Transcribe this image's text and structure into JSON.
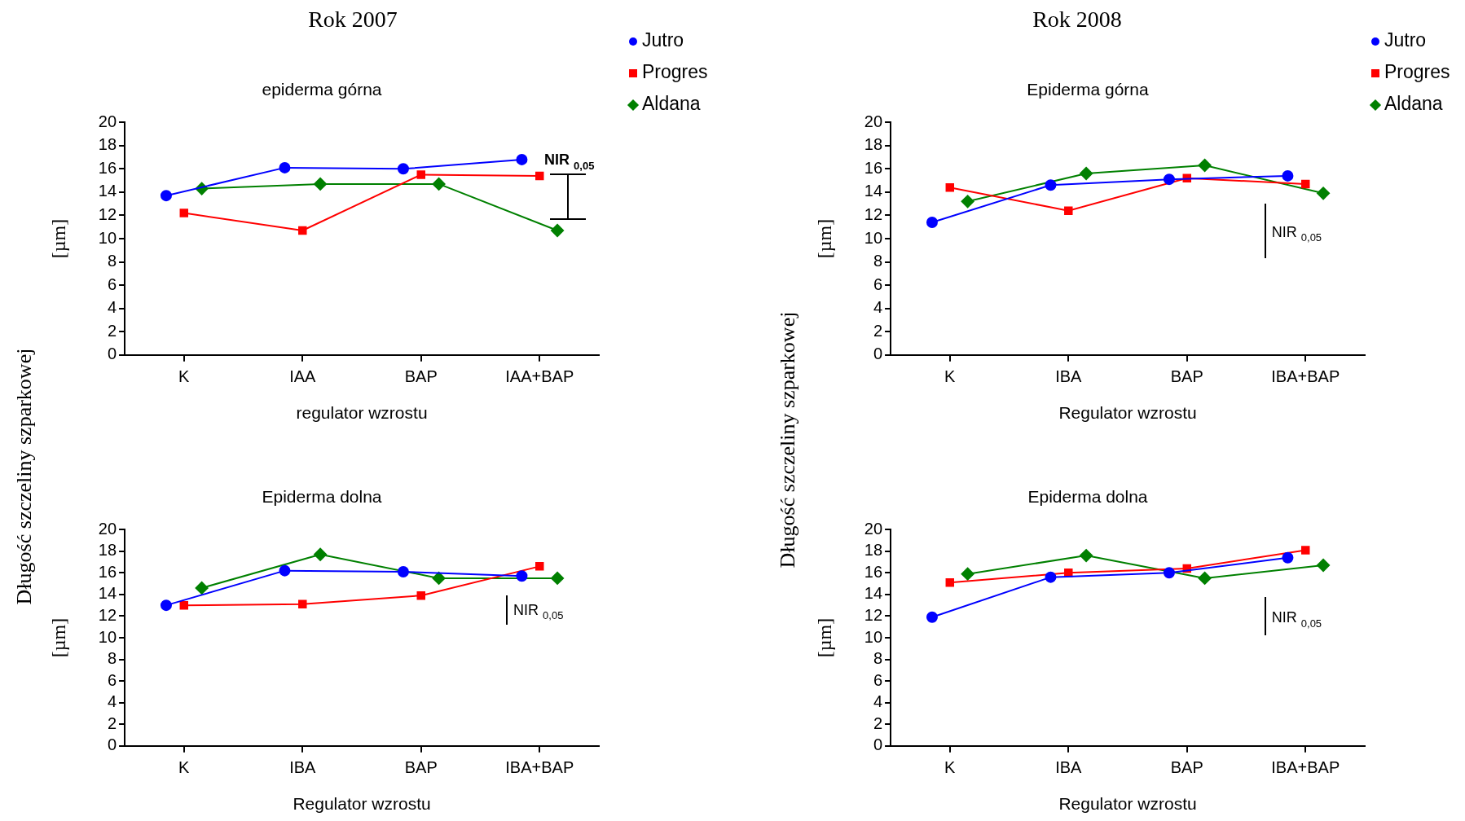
{
  "chart_data": [
    {
      "type": "line",
      "title": "epiderma górna",
      "xlabel": "regulator wzrostu",
      "ylabel": "[µm]",
      "categories": [
        "K",
        "IAA",
        "BAP",
        "IAA+BAP"
      ],
      "ylim": [
        0,
        20
      ],
      "yticks": [
        0,
        2,
        4,
        6,
        8,
        10,
        12,
        14,
        16,
        18,
        20
      ],
      "grid": false,
      "legend": "top right",
      "series": [
        {
          "name": "Jutro",
          "color": "#0000ff",
          "marker": "circle",
          "values": [
            13.7,
            16.1,
            16.0,
            16.8
          ]
        },
        {
          "name": "Progres",
          "color": "#ff0000",
          "marker": "square",
          "values": [
            12.2,
            10.7,
            15.5,
            15.4
          ]
        },
        {
          "name": "Aldana",
          "color": "#008000",
          "marker": "diamond",
          "values": [
            14.3,
            14.7,
            14.7,
            10.7
          ]
        }
      ],
      "annotations": [
        "NIR $_{0,05}$",
        "Rok 2007",
        "Długość szczeliny szparkowej"
      ]
    },
    {
      "type": "line",
      "title": "Epiderma górna",
      "xlabel": "Regulator wzrostu",
      "ylabel": "[µm]",
      "categories": [
        "K",
        "IBA",
        "BAP",
        "IBA+BAP"
      ],
      "ylim": [
        0,
        20
      ],
      "yticks": [
        0,
        2,
        4,
        6,
        8,
        10,
        12,
        14,
        16,
        18,
        20
      ],
      "grid": false,
      "legend": "top right",
      "series": [
        {
          "name": "Jutro",
          "color": "#0000ff",
          "marker": "circle",
          "values": [
            11.4,
            14.6,
            15.1,
            15.4
          ]
        },
        {
          "name": "Progres",
          "color": "#ff0000",
          "marker": "square",
          "values": [
            14.4,
            12.4,
            15.2,
            14.7
          ]
        },
        {
          "name": "Aldana",
          "color": "#008000",
          "marker": "diamond",
          "values": [
            13.2,
            15.6,
            16.3,
            13.9
          ]
        }
      ],
      "annotations": [
        "NIR $_{0,05}$",
        "Rok 2008",
        "Długość szczeliny szparkowej"
      ]
    },
    {
      "type": "line",
      "title": "Epiderma dolna",
      "xlabel": "Regulator wzrostu",
      "ylabel": "[µm]",
      "categories": [
        "K",
        "IBA",
        "BAP",
        "IBA+BAP"
      ],
      "ylim": [
        0,
        20
      ],
      "yticks": [
        0,
        2,
        4,
        6,
        8,
        10,
        12,
        14,
        16,
        18,
        20
      ],
      "grid": false,
      "series": [
        {
          "color": "#0000ff",
          "marker": "circle",
          "values": [
            13.0,
            16.2,
            16.1,
            15.7
          ]
        },
        {
          "color": "#ff0000",
          "marker": "square",
          "values": [
            13.0,
            13.1,
            13.9,
            16.6
          ]
        },
        {
          "color": "#008000",
          "marker": "diamond",
          "values": [
            14.6,
            17.7,
            15.5,
            15.5
          ]
        }
      ],
      "annotations": [
        "NIR $_{0,05}$"
      ]
    },
    {
      "type": "line",
      "title": "Epiderma dolna",
      "xlabel": "Regulator wzrostu",
      "ylabel": "[µm]",
      "categories": [
        "K",
        "IBA",
        "BAP",
        "IBA+BAP"
      ],
      "ylim": [
        0,
        20
      ],
      "yticks": [
        0,
        2,
        4,
        6,
        8,
        10,
        12,
        14,
        16,
        18,
        20
      ],
      "grid": false,
      "series": [
        {
          "color": "#0000ff",
          "marker": "circle",
          "values": [
            11.9,
            15.6,
            16.0,
            17.4
          ]
        },
        {
          "color": "#ff0000",
          "marker": "square",
          "values": [
            15.1,
            16.0,
            16.4,
            18.1
          ]
        },
        {
          "color": "#008000",
          "marker": "diamond",
          "values": [
            15.9,
            17.6,
            15.5,
            16.7
          ]
        }
      ],
      "annotations": [
        "NIR $_{0,05}$"
      ]
    }
  ]
}
